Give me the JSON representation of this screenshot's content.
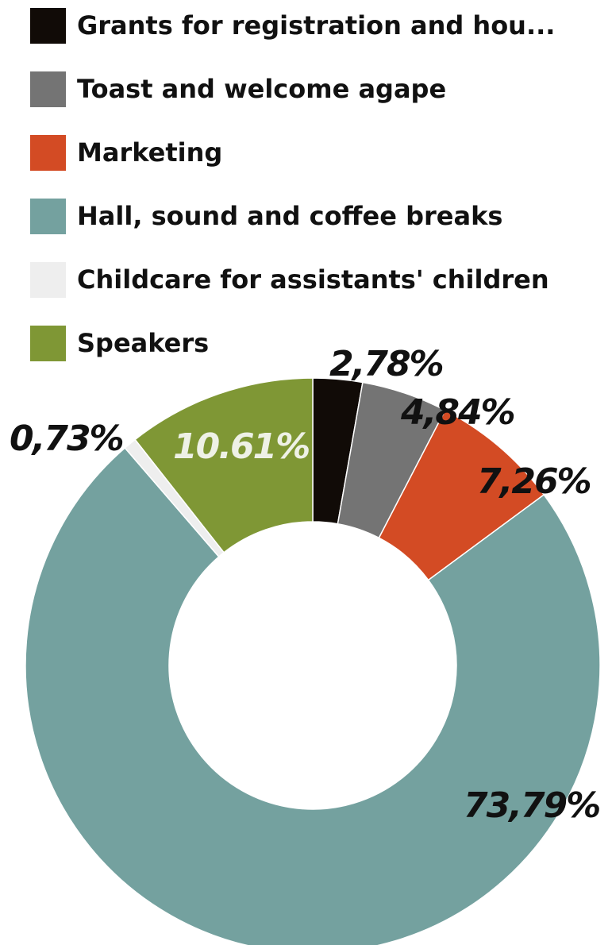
{
  "chart_data": {
    "type": "pie",
    "donut": true,
    "legend_position": "top",
    "categories": [
      "Grants for registration and hou...",
      "Toast and welcome agape",
      "Marketing",
      "Hall, sound and coffee breaks",
      "Childcare for assistants' children",
      "Speakers"
    ],
    "values": [
      2.78,
      4.84,
      7.26,
      73.79,
      0.73,
      10.61
    ],
    "labels": [
      "2,78%",
      "4,84%",
      "7,26%",
      "73,79%",
      "0,73%",
      "10.61%"
    ],
    "colors": [
      "#110b07",
      "#747474",
      "#d34b24",
      "#74a19f",
      "#eeeeee",
      "#7f9735"
    ],
    "label_colors": [
      "#111111",
      "#111111",
      "#111111",
      "#111111",
      "#111111",
      "#eef1e6"
    ]
  }
}
